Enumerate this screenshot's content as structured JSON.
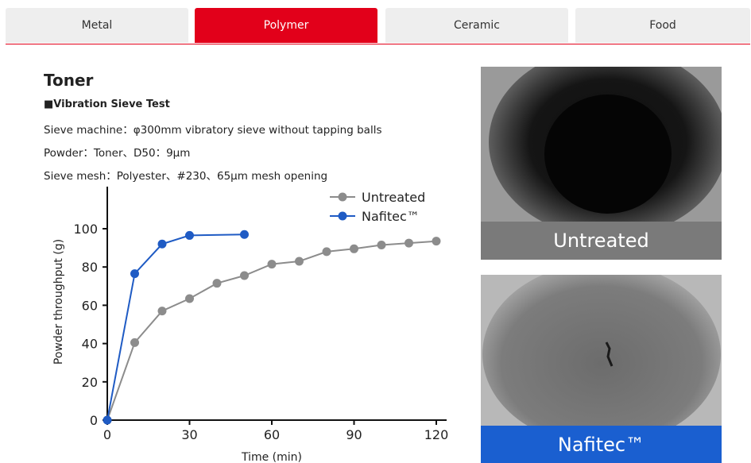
{
  "tabs": [
    {
      "label": "Metal"
    },
    {
      "label": "Polymer"
    },
    {
      "label": "Ceramic"
    },
    {
      "label": "Food"
    }
  ],
  "active_tab_index": 1,
  "colors": {
    "accent": "#e2001a",
    "untreated": "#8c8c8c",
    "nafitec": "#1f5bc4",
    "untreated_label_bg": "#7a7a7a",
    "nafitec_label_bg": "#1a5fd0"
  },
  "content": {
    "title": "Toner",
    "subtitle": "■Vibration Sieve Test",
    "specs": [
      "Sieve machine：φ300mm vibratory sieve without tapping balls",
      "Powder：Toner、D50：9μm",
      "Sieve mesh：Polyester、#230、65μm mesh opening"
    ]
  },
  "images": {
    "untreated_label": "Untreated",
    "nafitec_label": "Nafitec™"
  },
  "chart_data": {
    "type": "line",
    "title": "",
    "xlabel": "Time (min)",
    "ylabel": "Powder throughput (g)",
    "xlim": [
      0,
      120
    ],
    "ylim": [
      0,
      100
    ],
    "xticks": [
      0,
      30,
      60,
      90,
      120
    ],
    "yticks": [
      0,
      20,
      40,
      60,
      80,
      100
    ],
    "grid": false,
    "legend_position": "top-right",
    "series": [
      {
        "name": "Untreated",
        "color": "#8c8c8c",
        "x": [
          0,
          10,
          20,
          30,
          40,
          50,
          60,
          70,
          80,
          90,
          100,
          110,
          120
        ],
        "y": [
          0,
          40.5,
          57,
          63.5,
          71.5,
          75.5,
          81.5,
          83,
          88,
          89.5,
          91.5,
          92.5,
          93.5
        ]
      },
      {
        "name": "Nafitec™",
        "color": "#1f5bc4",
        "x": [
          0,
          10,
          20,
          30,
          50
        ],
        "y": [
          0,
          76.5,
          92,
          96.5,
          97
        ]
      }
    ]
  }
}
